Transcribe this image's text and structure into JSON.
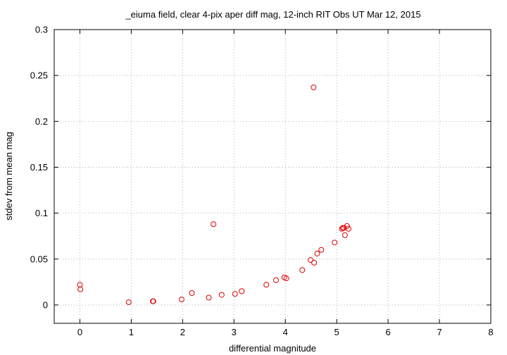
{
  "chart_data": {
    "type": "scatter",
    "title": "_eiuma field, clear 4-pix aper diff mag,  12-inch RIT Obs UT Mar 12, 2015",
    "xlabel": "differential magnitude",
    "ylabel": "stdev from mean mag",
    "xlim": [
      -0.5,
      8
    ],
    "ylim": [
      -0.02,
      0.3
    ],
    "xticks": [
      "0",
      "1",
      "2",
      "3",
      "4",
      "5",
      "6",
      "7",
      "8"
    ],
    "yticks": [
      "0",
      "0.05",
      "0.1",
      "0.15",
      "0.2",
      "0.25",
      "0.3"
    ],
    "grid": true,
    "legend": "none",
    "marker_color": "#e00000",
    "points": [
      {
        "x": 0.0,
        "y": 0.022
      },
      {
        "x": 0.01,
        "y": 0.017
      },
      {
        "x": 0.95,
        "y": 0.003
      },
      {
        "x": 1.42,
        "y": 0.004
      },
      {
        "x": 1.43,
        "y": 0.004
      },
      {
        "x": 1.98,
        "y": 0.006
      },
      {
        "x": 2.18,
        "y": 0.013
      },
      {
        "x": 2.51,
        "y": 0.008
      },
      {
        "x": 2.6,
        "y": 0.088
      },
      {
        "x": 2.76,
        "y": 0.011
      },
      {
        "x": 3.02,
        "y": 0.012
      },
      {
        "x": 3.15,
        "y": 0.015
      },
      {
        "x": 3.63,
        "y": 0.022
      },
      {
        "x": 3.82,
        "y": 0.027
      },
      {
        "x": 3.98,
        "y": 0.03
      },
      {
        "x": 4.02,
        "y": 0.029
      },
      {
        "x": 4.33,
        "y": 0.038
      },
      {
        "x": 4.49,
        "y": 0.049
      },
      {
        "x": 4.55,
        "y": 0.237
      },
      {
        "x": 4.56,
        "y": 0.046
      },
      {
        "x": 4.62,
        "y": 0.056
      },
      {
        "x": 4.7,
        "y": 0.06
      },
      {
        "x": 4.96,
        "y": 0.068
      },
      {
        "x": 5.1,
        "y": 0.083
      },
      {
        "x": 5.12,
        "y": 0.084
      },
      {
        "x": 5.14,
        "y": 0.084
      },
      {
        "x": 5.16,
        "y": 0.076
      },
      {
        "x": 5.2,
        "y": 0.086
      },
      {
        "x": 5.23,
        "y": 0.083
      }
    ]
  }
}
